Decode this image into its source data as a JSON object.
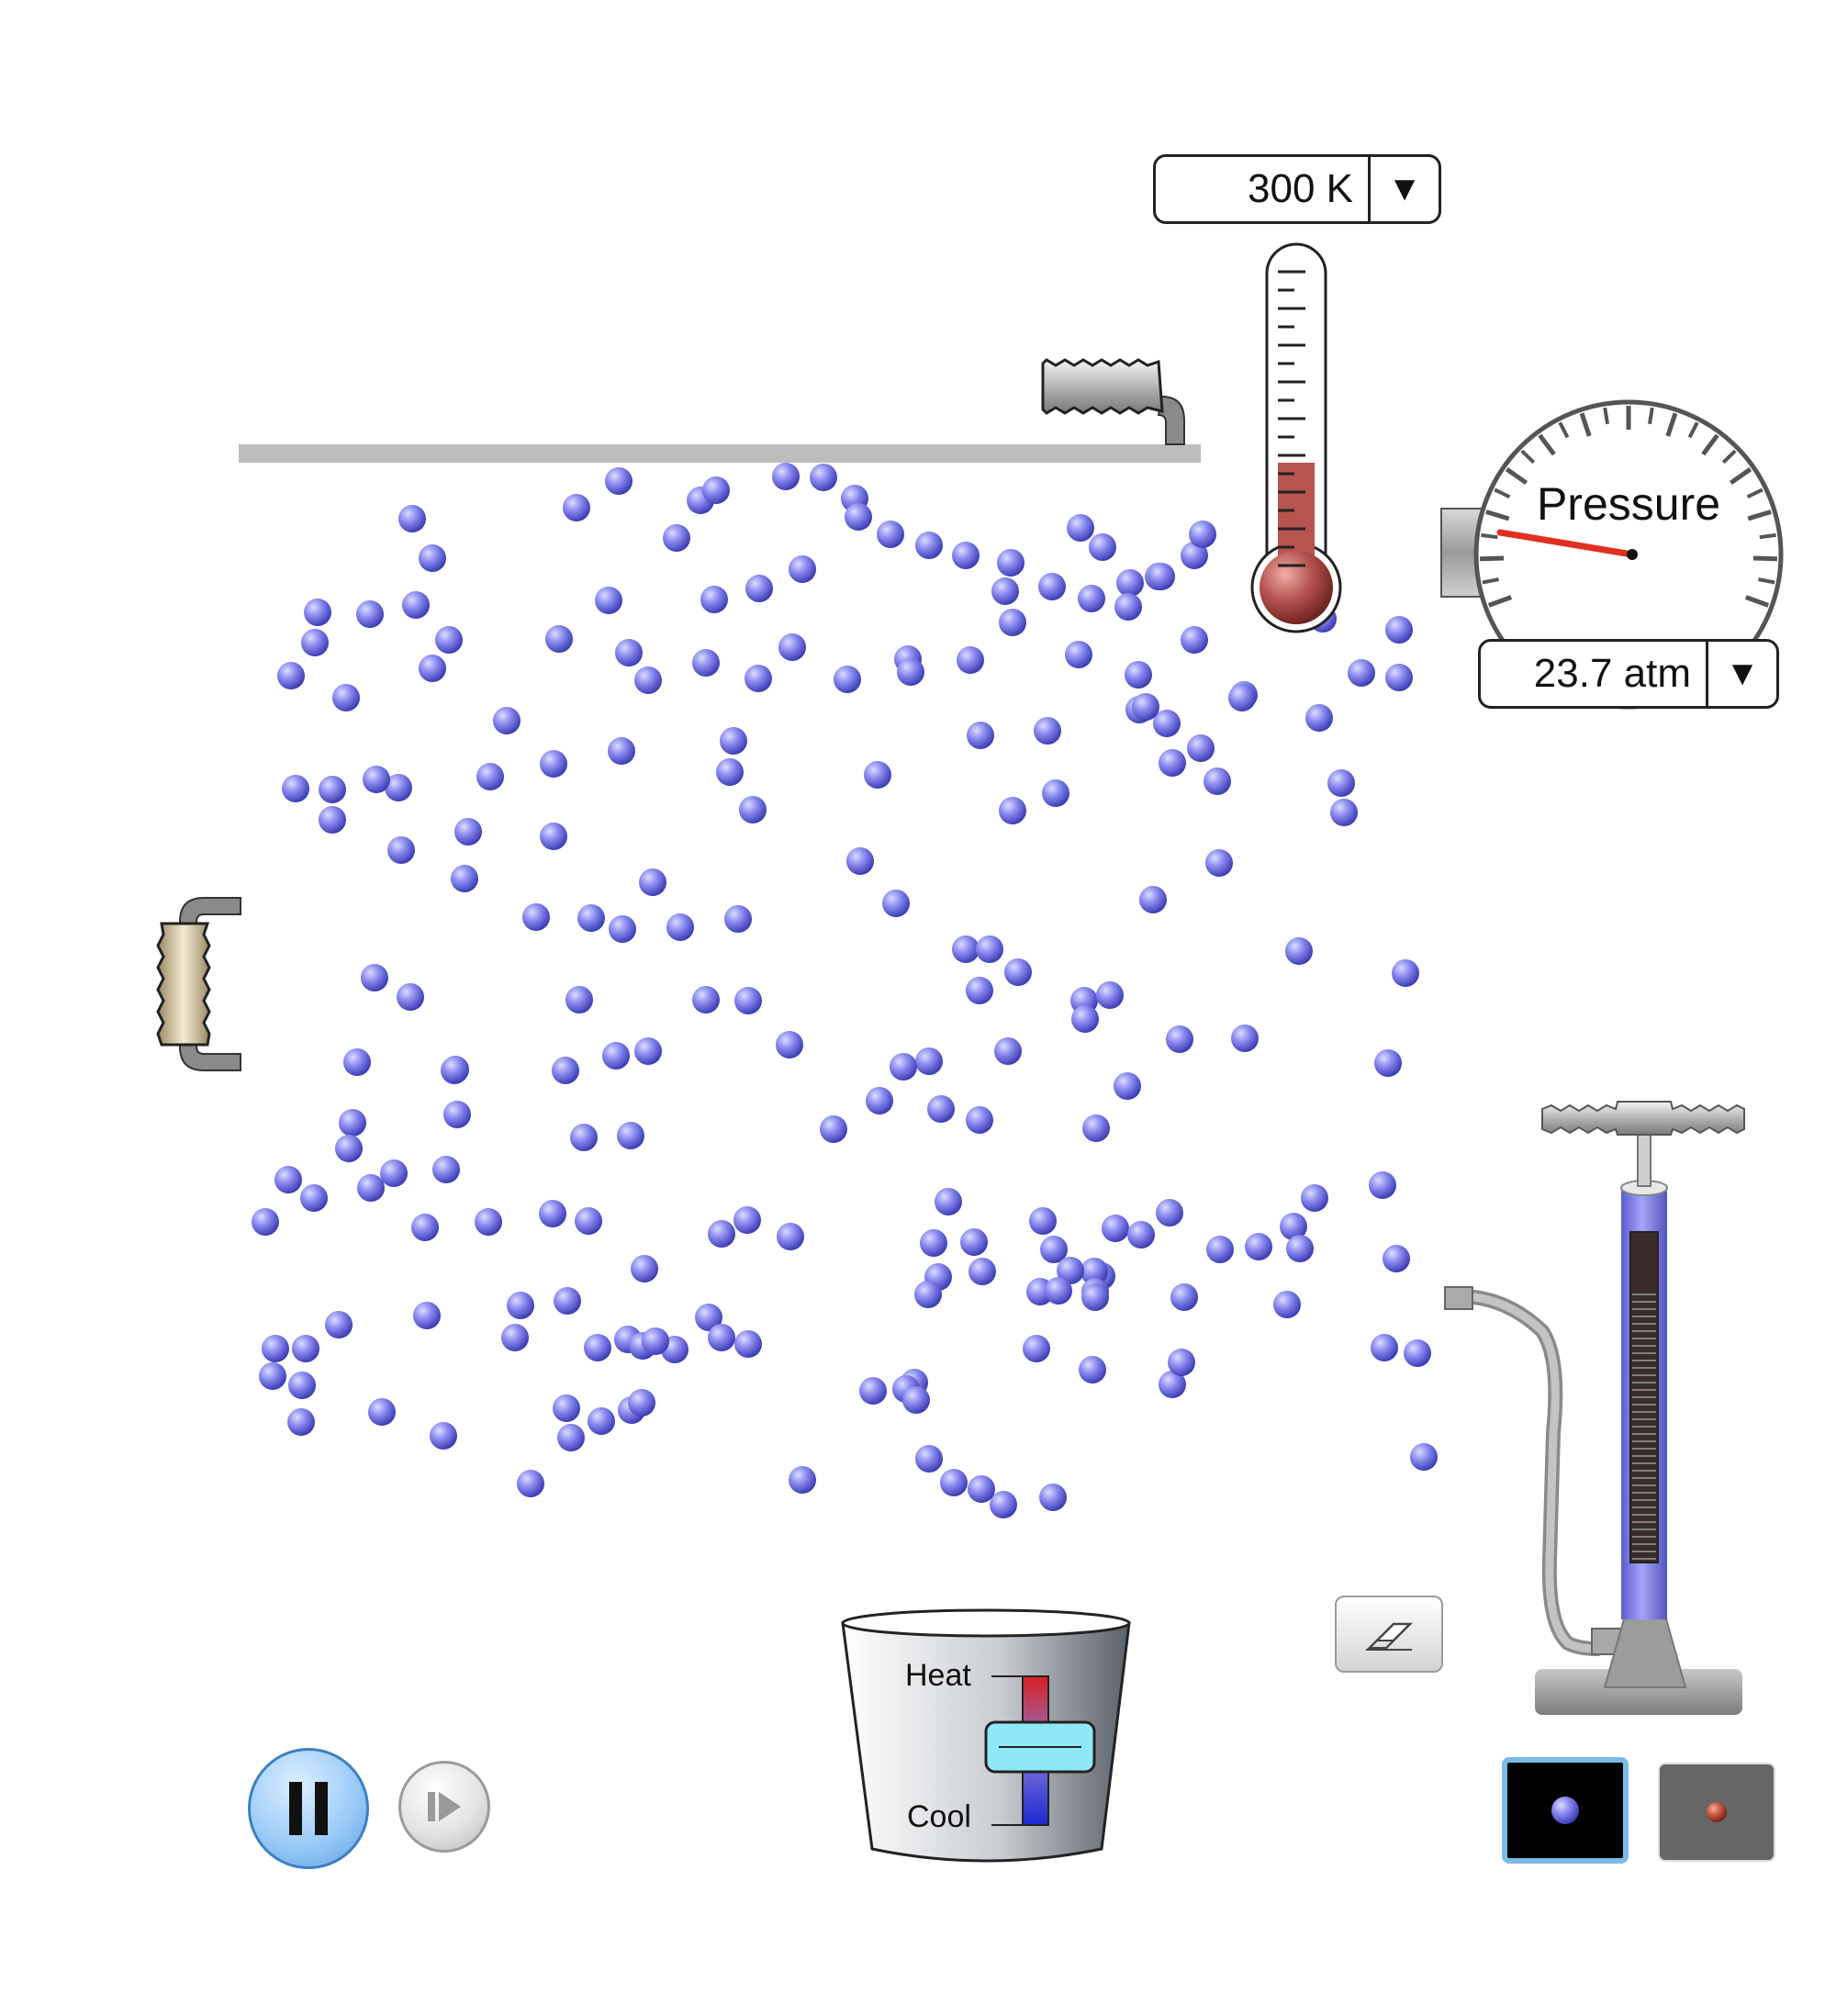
{
  "temperature": {
    "value": "300 K",
    "dropdown_arrow": "▼"
  },
  "pressure": {
    "label": "Pressure",
    "value": "23.7 atm",
    "dropdown_arrow": "▼"
  },
  "heater_cooler": {
    "heat_label": "Heat",
    "cool_label": "Cool"
  },
  "controls": {
    "pause_icon": "pause-icon",
    "step_icon": "step-forward-icon",
    "eraser_icon": "eraser-icon"
  },
  "particle_species": [
    {
      "name": "heavy",
      "icon": "heavy-particle-icon",
      "selected": true,
      "color": "#7b7be8"
    },
    {
      "name": "light",
      "icon": "light-particle-icon",
      "selected": false,
      "color": "#c8553d"
    }
  ],
  "colors": {
    "particle": "#7b7be8",
    "particle_highlight": "#c9c9ff",
    "pump_barrel": "#8080e8",
    "thermometer_fill": "#b85450",
    "gauge_needle": "#e03020",
    "heat": "#d02020",
    "cool": "#2030d0",
    "selection_outline": "#7bbbe6"
  }
}
